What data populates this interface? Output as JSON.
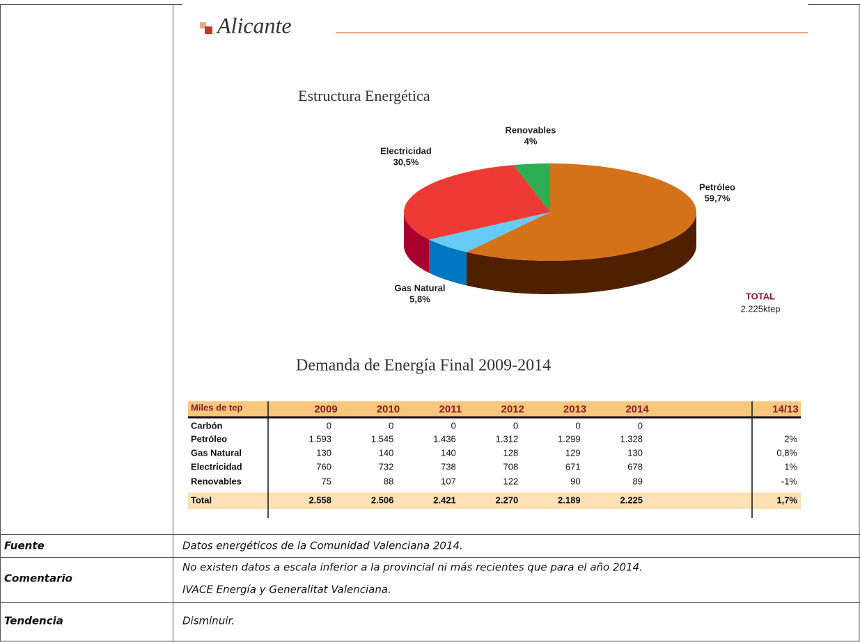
{
  "header": {
    "title": "Alicante"
  },
  "chart_data": {
    "type": "pie",
    "title": "Estructura Energética",
    "categories": [
      "Petróleo",
      "Gas Natural",
      "Electricidad",
      "Renovables"
    ],
    "values": [
      59.7,
      5.8,
      30.5,
      4
    ],
    "value_labels": [
      "59,7%",
      "5,8%",
      "30,5%",
      "4%"
    ],
    "colors": [
      "#d4721a",
      "#66ccf5",
      "#ee3a34",
      "#2fad55"
    ],
    "side_colors": [
      "#4e2000",
      "#0077c0",
      "#a8002e",
      "#1e7a3a"
    ],
    "total_label": "TOTAL",
    "total_value": "2.225ktep"
  },
  "table": {
    "title": "Demanda de Energía Final 2009-2014",
    "header": [
      "Miles de tep",
      "2009",
      "2010",
      "2011",
      "2012",
      "2013",
      "2014",
      "14/13"
    ],
    "rows": [
      [
        "Carbón",
        "0",
        "0",
        "0",
        "0",
        "0",
        "0"
      ],
      [
        "Petróleo",
        "1.593",
        "1.545",
        "1.436",
        "1.312",
        "1.299",
        "1.328",
        "2%"
      ],
      [
        "Gas Natural",
        "130",
        "140",
        "140",
        "128",
        "129",
        "130",
        "0,8%"
      ],
      [
        "Electricidad",
        "760",
        "732",
        "738",
        "708",
        "671",
        "678",
        "1%"
      ],
      [
        "Renovables",
        "75",
        "88",
        "107",
        "122",
        "90",
        "89",
        "-1%"
      ],
      [
        "Total",
        "2.558",
        "2.506",
        "2.421",
        "2.270",
        "2.189",
        "2.225",
        "1,7%"
      ]
    ]
  },
  "info": [
    {
      "label": "Fuente",
      "lines": [
        "Datos energéticos de la Comunidad Valenciana 2014."
      ]
    },
    {
      "label": "Comentario",
      "lines": [
        "No existen datos a escala inferior a la provincial ni más recientes que para el año 2014.",
        "IVACE Energía y Generalitat Valenciana."
      ]
    },
    {
      "label": "Tendencia",
      "lines": [
        "Disminuir."
      ]
    }
  ]
}
